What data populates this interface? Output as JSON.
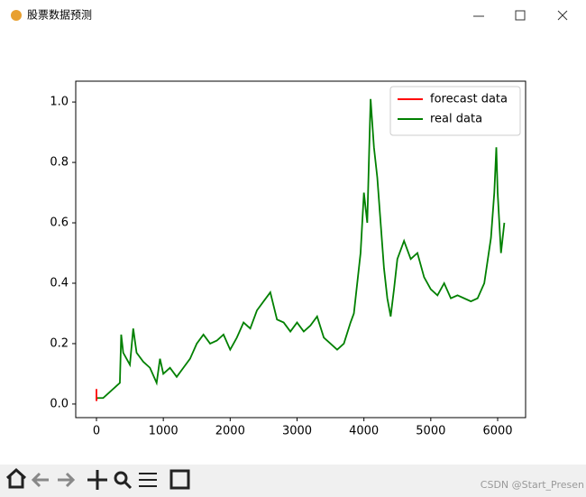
{
  "window": {
    "title": "股票数据预测"
  },
  "watermark": "CSDN @Start_Presen",
  "chart_data": {
    "type": "line",
    "xlim": [
      -310,
      6418
    ],
    "ylim": [
      -0.045,
      1.069
    ],
    "xticks": [
      0,
      1000,
      2000,
      3000,
      4000,
      5000,
      6000
    ],
    "yticks": [
      {
        "value": 0,
        "label": "0.0"
      },
      {
        "value": 0.2,
        "label": "0.2"
      },
      {
        "value": 0.4,
        "label": "0.4"
      },
      {
        "value": 0.6,
        "label": "0.6"
      },
      {
        "value": 0.8,
        "label": "0.8"
      },
      {
        "value": 1.0,
        "label": "1.0"
      }
    ],
    "legend": "upper right",
    "series": [
      {
        "name": "forecast data",
        "color": "#ff0000",
        "x": [
          0,
          0,
          5
        ],
        "values": [
          0.05,
          0.01,
          0.02
        ]
      },
      {
        "name": "real data",
        "color": "#008000",
        "x": [
          0,
          100,
          200,
          300,
          350,
          370,
          400,
          450,
          500,
          550,
          600,
          700,
          800,
          900,
          950,
          1000,
          1100,
          1200,
          1300,
          1400,
          1500,
          1600,
          1700,
          1800,
          1900,
          2000,
          2100,
          2200,
          2300,
          2400,
          2500,
          2600,
          2700,
          2800,
          2900,
          3000,
          3100,
          3200,
          3300,
          3400,
          3500,
          3600,
          3700,
          3800,
          3850,
          3900,
          3950,
          4000,
          4050,
          4080,
          4100,
          4150,
          4200,
          4250,
          4300,
          4350,
          4400,
          4450,
          4500,
          4600,
          4700,
          4800,
          4900,
          5000,
          5100,
          5200,
          5300,
          5400,
          5500,
          5600,
          5700,
          5800,
          5900,
          5950,
          5980,
          6000,
          6050,
          6100
        ],
        "values": [
          0.02,
          0.02,
          0.04,
          0.06,
          0.07,
          0.23,
          0.17,
          0.15,
          0.13,
          0.25,
          0.17,
          0.14,
          0.12,
          0.07,
          0.15,
          0.1,
          0.12,
          0.09,
          0.12,
          0.15,
          0.2,
          0.23,
          0.2,
          0.21,
          0.23,
          0.18,
          0.22,
          0.27,
          0.25,
          0.31,
          0.34,
          0.37,
          0.28,
          0.27,
          0.24,
          0.27,
          0.24,
          0.26,
          0.29,
          0.22,
          0.2,
          0.18,
          0.2,
          0.27,
          0.3,
          0.4,
          0.5,
          0.7,
          0.6,
          0.85,
          1.01,
          0.85,
          0.75,
          0.6,
          0.45,
          0.35,
          0.29,
          0.38,
          0.48,
          0.54,
          0.48,
          0.5,
          0.42,
          0.38,
          0.36,
          0.4,
          0.35,
          0.36,
          0.35,
          0.34,
          0.35,
          0.4,
          0.55,
          0.7,
          0.85,
          0.7,
          0.5,
          0.6
        ]
      }
    ]
  }
}
